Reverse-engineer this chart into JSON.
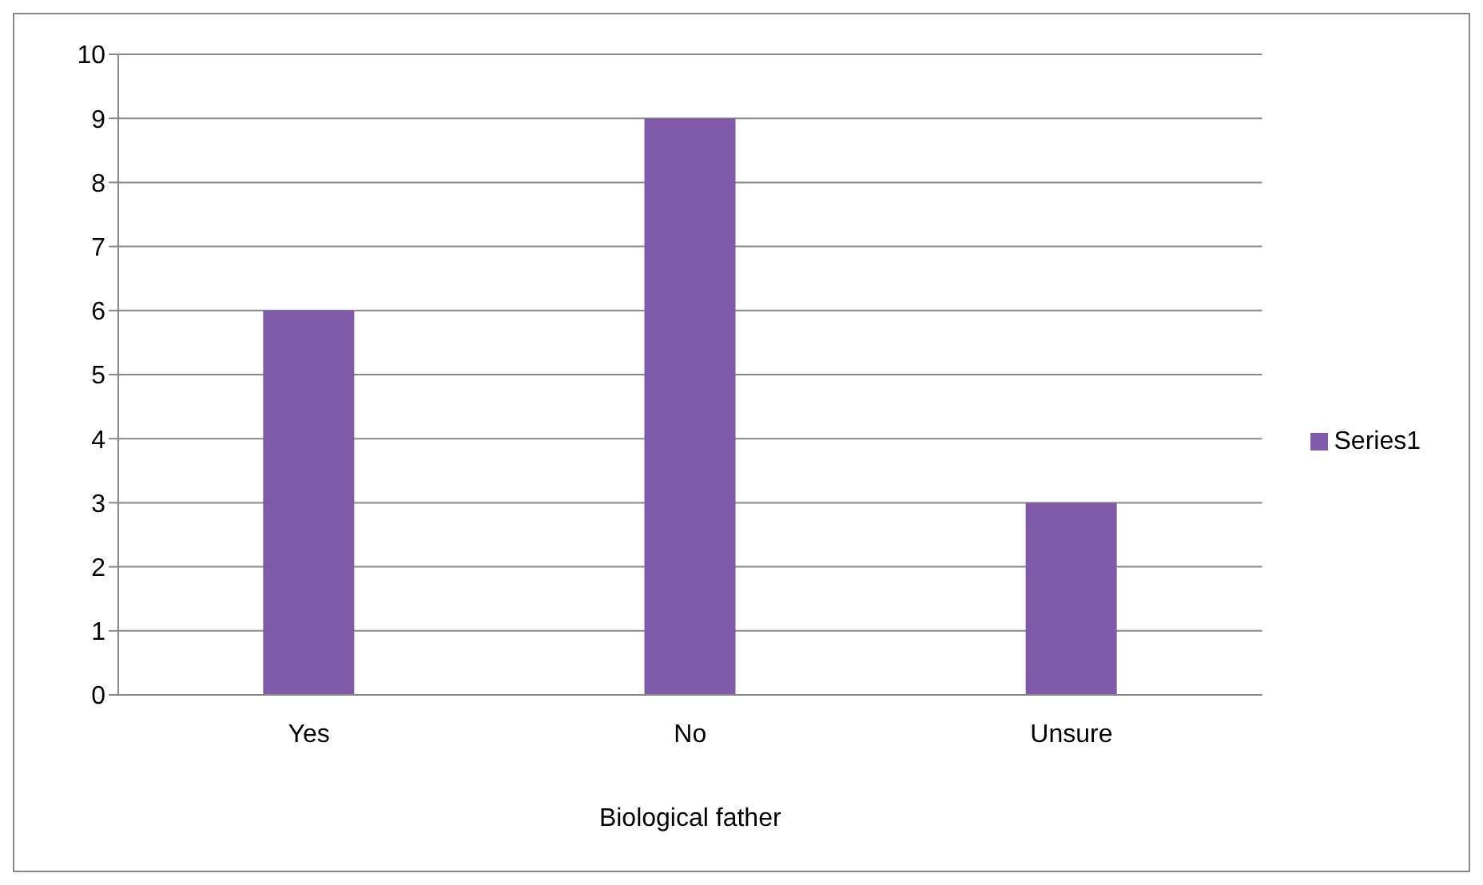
{
  "chart_data": {
    "type": "bar",
    "xlabel": "Biological father",
    "categories": [
      "Yes",
      "No",
      "Unsure"
    ],
    "series": [
      {
        "name": "Series1",
        "color": "#7f5aa8",
        "values": [
          6,
          9,
          3
        ]
      }
    ],
    "ylim": [
      0,
      10
    ],
    "yticks": [
      0,
      1,
      2,
      3,
      4,
      5,
      6,
      7,
      8,
      9,
      10
    ],
    "grid": "y",
    "legend": "right"
  }
}
